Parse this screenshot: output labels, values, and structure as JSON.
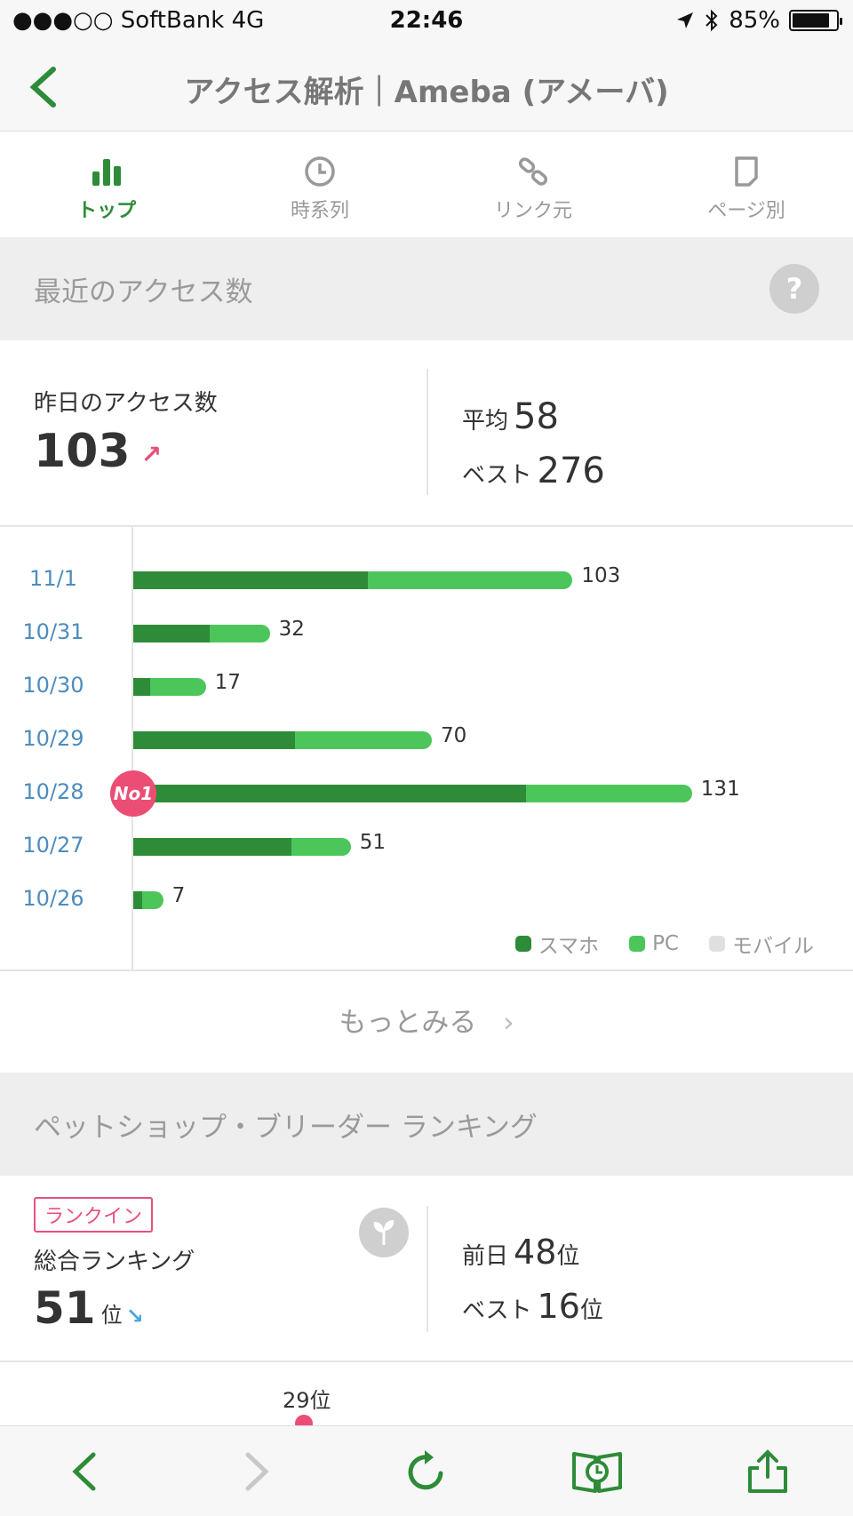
{
  "status": {
    "carrier": "●●●○○ SoftBank   4G",
    "time": "22:46",
    "battery": "85%",
    "battery_level": 0.85
  },
  "nav": {
    "title": "アクセス解析｜Ameba (アメーバ)"
  },
  "tabs": [
    {
      "label": "トップ",
      "icon": "bar-chart-icon",
      "active": true
    },
    {
      "label": "時系列",
      "icon": "clock-icon"
    },
    {
      "label": "リンク元",
      "icon": "link-icon"
    },
    {
      "label": "ページ別",
      "icon": "page-icon"
    }
  ],
  "access": {
    "header": "最近のアクセス数",
    "help": "?",
    "yesterday_label": "昨日のアクセス数",
    "yesterday_value": "103",
    "trend_arrow": "↗",
    "avg_label": "平均",
    "avg_value": "58",
    "best_label": "ベスト",
    "best_value": "276"
  },
  "chart_data": {
    "type": "bar",
    "orientation": "horizontal",
    "stacked": true,
    "categories": [
      "11/1",
      "10/31",
      "10/30",
      "10/29",
      "10/28",
      "10/27",
      "10/26"
    ],
    "totals": [
      103,
      32,
      17,
      70,
      131,
      51,
      7
    ],
    "series": [
      {
        "name": "スマホ",
        "color": "#2e8b38",
        "values": [
          55,
          18,
          4,
          38,
          92,
          37,
          2
        ]
      },
      {
        "name": "PC",
        "color": "#4cc65a",
        "values": [
          48,
          14,
          13,
          32,
          39,
          14,
          5
        ]
      },
      {
        "name": "モバイル",
        "color": "#e0e0e0",
        "values": [
          0,
          0,
          0,
          0,
          0,
          0,
          0
        ]
      }
    ],
    "xlim": [
      0,
      150
    ],
    "top_badge": {
      "category": "10/28",
      "text": "No1"
    },
    "legend_position": "bottom-right"
  },
  "more": {
    "label": "もっとみる",
    "chevron": "›"
  },
  "ranking": {
    "header": "ペットショップ・ブリーダー ランキング",
    "badge": "ランクイン",
    "label": "総合ランキング",
    "value": "51",
    "unit": "位",
    "trend_arrow": "↘",
    "prev_label": "前日",
    "prev_value": "48",
    "prev_unit": "位",
    "best_label": "ベスト",
    "best_value": "16",
    "best_unit": "位",
    "peek_label": "29位"
  },
  "colors": {
    "accent": "#2e8b38",
    "pc": "#4cc65a",
    "highlight": "#ec4d74",
    "date": "#4d8cbf"
  }
}
